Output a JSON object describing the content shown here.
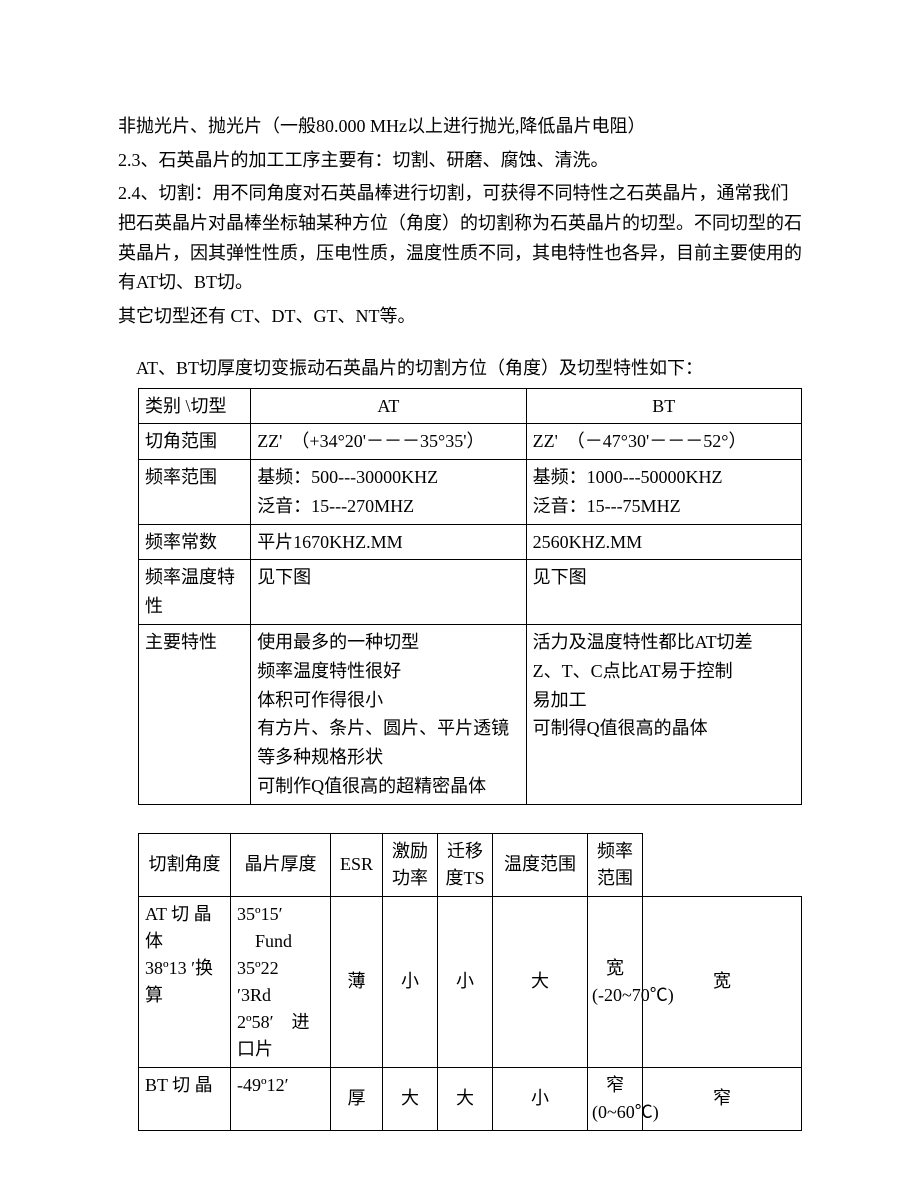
{
  "paragraphs": {
    "p1": "非抛光片、抛光片（一般80.000 MHz以上进行抛光,降低晶片电阻）",
    "p2": "2.3、石英晶片的加工工序主要有：切割、研磨、腐蚀、清洗。",
    "p3": "2.4、切割：用不同角度对石英晶棒进行切割，可获得不同特性之石英晶片，通常我们把石英晶片对晶棒坐标轴某种方位（角度）的切割称为石英晶片的切型。不同切型的石英晶片，因其弹性性质，压电性质，温度性质不同，其电特性也各异，目前主要使用的有AT切、BT切。",
    "p4": "其它切型还有 CT、DT、GT、NT等。",
    "intro": "AT、BT切厚度切变振动石英晶片的切割方位（角度）及切型特性如下："
  },
  "table1": {
    "header": {
      "c0": "类别 \\切型",
      "c1": "AT",
      "c2": "BT"
    },
    "rows": [
      {
        "label": "切角范围",
        "at": "ZZ'　（+34°20'－－－35°35'）",
        "bt": "ZZ'　（－47°30'－－－52°）"
      },
      {
        "label": "频率范围",
        "at": "基频：500---30000KHZ\n泛音：15---270MHZ",
        "bt": "基频：1000---50000KHZ\n泛音：15---75MHZ"
      },
      {
        "label": "频率常数",
        "at": "平片1670KHZ.MM",
        "bt": "2560KHZ.MM"
      },
      {
        "label": "频率温度特性",
        "at": "见下图",
        "bt": "见下图"
      },
      {
        "label": "主要特性",
        "at": "使用最多的一种切型\n频率温度特性很好\n体积可作得很小\n有方片、条片、圆片、平片透镜等多种规格形状\n可制作Q值很高的超精密晶体",
        "bt": "活力及温度特性都比AT切差\nZ、T、C点比AT易于控制\n易加工\n可制得Q值很高的晶体"
      }
    ]
  },
  "table2": {
    "header": {
      "c0": "切割角度",
      "c1": "晶片厚度",
      "c2": "ESR",
      "c3": "激励功率",
      "c4": "迁移度TS",
      "c5": "温度范围",
      "c6": "频率范围"
    },
    "rows": [
      {
        "c0": "AT 切 晶体\n38º13 ′换算",
        "c1": "35º15′\n　Fund\n35º22　′3Rd\n2º58′　进口片",
        "c2": "薄",
        "c3": "小",
        "c4": "小",
        "c5": "大",
        "c6": "宽(-20~70℃)",
        "c7": "宽"
      },
      {
        "c0": "BT 切 晶",
        "c1": "-49º12′",
        "c2": "厚",
        "c3": "大",
        "c4": "大",
        "c5": "小",
        "c6": "窄(0~60℃)",
        "c7": "窄"
      }
    ]
  }
}
